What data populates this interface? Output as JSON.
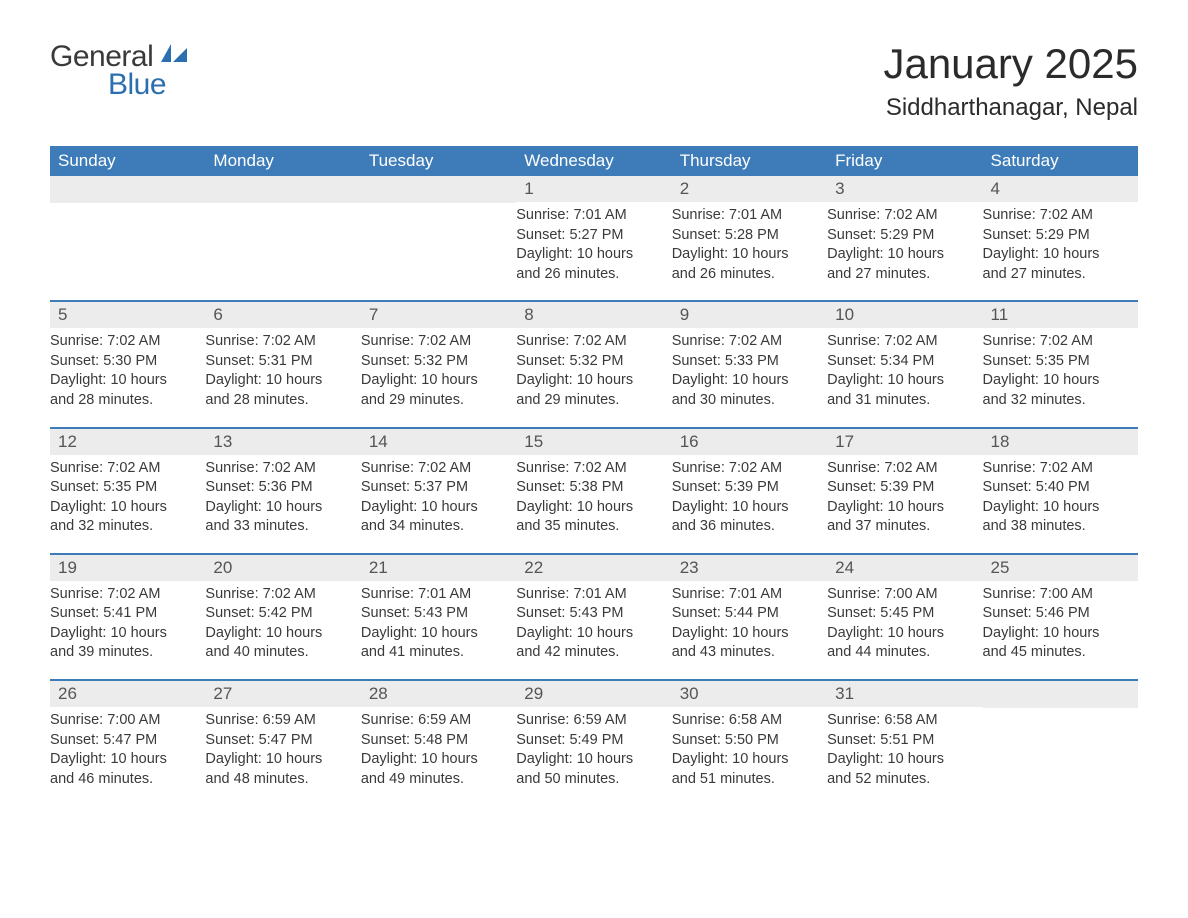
{
  "brand": {
    "general": "General",
    "blue": "Blue"
  },
  "title": "January 2025",
  "location": "Siddharthanagar, Nepal",
  "colors": {
    "header_bg": "#3d7cb8",
    "header_text": "#ffffff",
    "row_border": "#3d7cb8",
    "daynum_bg": "#ececec",
    "body_text": "#3a3a3a",
    "logo_blue": "#2c6fb0",
    "page_bg": "#ffffff"
  },
  "fonts": {
    "month_title_size": 42,
    "location_size": 24,
    "weekday_size": 17,
    "daynum_size": 17,
    "body_size": 14.5
  },
  "weekdays": [
    "Sunday",
    "Monday",
    "Tuesday",
    "Wednesday",
    "Thursday",
    "Friday",
    "Saturday"
  ],
  "weeks": [
    [
      null,
      null,
      null,
      {
        "n": "1",
        "sunrise": "Sunrise: 7:01 AM",
        "sunset": "Sunset: 5:27 PM",
        "dl1": "Daylight: 10 hours",
        "dl2": "and 26 minutes."
      },
      {
        "n": "2",
        "sunrise": "Sunrise: 7:01 AM",
        "sunset": "Sunset: 5:28 PM",
        "dl1": "Daylight: 10 hours",
        "dl2": "and 26 minutes."
      },
      {
        "n": "3",
        "sunrise": "Sunrise: 7:02 AM",
        "sunset": "Sunset: 5:29 PM",
        "dl1": "Daylight: 10 hours",
        "dl2": "and 27 minutes."
      },
      {
        "n": "4",
        "sunrise": "Sunrise: 7:02 AM",
        "sunset": "Sunset: 5:29 PM",
        "dl1": "Daylight: 10 hours",
        "dl2": "and 27 minutes."
      }
    ],
    [
      {
        "n": "5",
        "sunrise": "Sunrise: 7:02 AM",
        "sunset": "Sunset: 5:30 PM",
        "dl1": "Daylight: 10 hours",
        "dl2": "and 28 minutes."
      },
      {
        "n": "6",
        "sunrise": "Sunrise: 7:02 AM",
        "sunset": "Sunset: 5:31 PM",
        "dl1": "Daylight: 10 hours",
        "dl2": "and 28 minutes."
      },
      {
        "n": "7",
        "sunrise": "Sunrise: 7:02 AM",
        "sunset": "Sunset: 5:32 PM",
        "dl1": "Daylight: 10 hours",
        "dl2": "and 29 minutes."
      },
      {
        "n": "8",
        "sunrise": "Sunrise: 7:02 AM",
        "sunset": "Sunset: 5:32 PM",
        "dl1": "Daylight: 10 hours",
        "dl2": "and 29 minutes."
      },
      {
        "n": "9",
        "sunrise": "Sunrise: 7:02 AM",
        "sunset": "Sunset: 5:33 PM",
        "dl1": "Daylight: 10 hours",
        "dl2": "and 30 minutes."
      },
      {
        "n": "10",
        "sunrise": "Sunrise: 7:02 AM",
        "sunset": "Sunset: 5:34 PM",
        "dl1": "Daylight: 10 hours",
        "dl2": "and 31 minutes."
      },
      {
        "n": "11",
        "sunrise": "Sunrise: 7:02 AM",
        "sunset": "Sunset: 5:35 PM",
        "dl1": "Daylight: 10 hours",
        "dl2": "and 32 minutes."
      }
    ],
    [
      {
        "n": "12",
        "sunrise": "Sunrise: 7:02 AM",
        "sunset": "Sunset: 5:35 PM",
        "dl1": "Daylight: 10 hours",
        "dl2": "and 32 minutes."
      },
      {
        "n": "13",
        "sunrise": "Sunrise: 7:02 AM",
        "sunset": "Sunset: 5:36 PM",
        "dl1": "Daylight: 10 hours",
        "dl2": "and 33 minutes."
      },
      {
        "n": "14",
        "sunrise": "Sunrise: 7:02 AM",
        "sunset": "Sunset: 5:37 PM",
        "dl1": "Daylight: 10 hours",
        "dl2": "and 34 minutes."
      },
      {
        "n": "15",
        "sunrise": "Sunrise: 7:02 AM",
        "sunset": "Sunset: 5:38 PM",
        "dl1": "Daylight: 10 hours",
        "dl2": "and 35 minutes."
      },
      {
        "n": "16",
        "sunrise": "Sunrise: 7:02 AM",
        "sunset": "Sunset: 5:39 PM",
        "dl1": "Daylight: 10 hours",
        "dl2": "and 36 minutes."
      },
      {
        "n": "17",
        "sunrise": "Sunrise: 7:02 AM",
        "sunset": "Sunset: 5:39 PM",
        "dl1": "Daylight: 10 hours",
        "dl2": "and 37 minutes."
      },
      {
        "n": "18",
        "sunrise": "Sunrise: 7:02 AM",
        "sunset": "Sunset: 5:40 PM",
        "dl1": "Daylight: 10 hours",
        "dl2": "and 38 minutes."
      }
    ],
    [
      {
        "n": "19",
        "sunrise": "Sunrise: 7:02 AM",
        "sunset": "Sunset: 5:41 PM",
        "dl1": "Daylight: 10 hours",
        "dl2": "and 39 minutes."
      },
      {
        "n": "20",
        "sunrise": "Sunrise: 7:02 AM",
        "sunset": "Sunset: 5:42 PM",
        "dl1": "Daylight: 10 hours",
        "dl2": "and 40 minutes."
      },
      {
        "n": "21",
        "sunrise": "Sunrise: 7:01 AM",
        "sunset": "Sunset: 5:43 PM",
        "dl1": "Daylight: 10 hours",
        "dl2": "and 41 minutes."
      },
      {
        "n": "22",
        "sunrise": "Sunrise: 7:01 AM",
        "sunset": "Sunset: 5:43 PM",
        "dl1": "Daylight: 10 hours",
        "dl2": "and 42 minutes."
      },
      {
        "n": "23",
        "sunrise": "Sunrise: 7:01 AM",
        "sunset": "Sunset: 5:44 PM",
        "dl1": "Daylight: 10 hours",
        "dl2": "and 43 minutes."
      },
      {
        "n": "24",
        "sunrise": "Sunrise: 7:00 AM",
        "sunset": "Sunset: 5:45 PM",
        "dl1": "Daylight: 10 hours",
        "dl2": "and 44 minutes."
      },
      {
        "n": "25",
        "sunrise": "Sunrise: 7:00 AM",
        "sunset": "Sunset: 5:46 PM",
        "dl1": "Daylight: 10 hours",
        "dl2": "and 45 minutes."
      }
    ],
    [
      {
        "n": "26",
        "sunrise": "Sunrise: 7:00 AM",
        "sunset": "Sunset: 5:47 PM",
        "dl1": "Daylight: 10 hours",
        "dl2": "and 46 minutes."
      },
      {
        "n": "27",
        "sunrise": "Sunrise: 6:59 AM",
        "sunset": "Sunset: 5:47 PM",
        "dl1": "Daylight: 10 hours",
        "dl2": "and 48 minutes."
      },
      {
        "n": "28",
        "sunrise": "Sunrise: 6:59 AM",
        "sunset": "Sunset: 5:48 PM",
        "dl1": "Daylight: 10 hours",
        "dl2": "and 49 minutes."
      },
      {
        "n": "29",
        "sunrise": "Sunrise: 6:59 AM",
        "sunset": "Sunset: 5:49 PM",
        "dl1": "Daylight: 10 hours",
        "dl2": "and 50 minutes."
      },
      {
        "n": "30",
        "sunrise": "Sunrise: 6:58 AM",
        "sunset": "Sunset: 5:50 PM",
        "dl1": "Daylight: 10 hours",
        "dl2": "and 51 minutes."
      },
      {
        "n": "31",
        "sunrise": "Sunrise: 6:58 AM",
        "sunset": "Sunset: 5:51 PM",
        "dl1": "Daylight: 10 hours",
        "dl2": "and 52 minutes."
      },
      null
    ]
  ]
}
